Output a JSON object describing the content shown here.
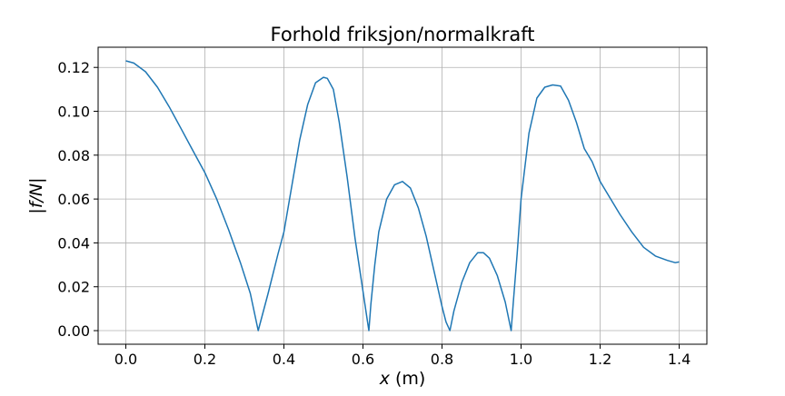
{
  "chart_data": {
    "type": "line",
    "title": "Forhold friksjon/normalkraft",
    "xlabel": {
      "var": "x",
      "unit": " (m)"
    },
    "ylabel": "|f/N|",
    "xlim": [
      -0.07,
      1.47
    ],
    "ylim": [
      -0.0062,
      0.1292
    ],
    "xticks": [
      0.0,
      0.2,
      0.4,
      0.6,
      0.8,
      1.0,
      1.2,
      1.4
    ],
    "xtick_labels": [
      "0.0",
      "0.2",
      "0.4",
      "0.6",
      "0.8",
      "1.0",
      "1.2",
      "1.4"
    ],
    "yticks": [
      0.0,
      0.02,
      0.04,
      0.06,
      0.08,
      0.1,
      0.12
    ],
    "ytick_labels": [
      "0.00",
      "0.02",
      "0.04",
      "0.06",
      "0.08",
      "0.10",
      "0.12"
    ],
    "grid": true,
    "series": [
      {
        "color": "#1f77b4",
        "x": [
          0.0,
          0.02,
          0.05,
          0.08,
          0.11,
          0.14,
          0.17,
          0.2,
          0.23,
          0.26,
          0.29,
          0.315,
          0.335,
          0.36,
          0.385,
          0.4,
          0.42,
          0.44,
          0.46,
          0.48,
          0.5,
          0.51,
          0.525,
          0.54,
          0.56,
          0.58,
          0.6,
          0.61,
          0.615,
          0.62,
          0.63,
          0.64,
          0.66,
          0.68,
          0.7,
          0.72,
          0.74,
          0.76,
          0.78,
          0.8,
          0.81,
          0.82,
          0.83,
          0.85,
          0.87,
          0.89,
          0.905,
          0.92,
          0.94,
          0.96,
          0.975,
          0.98,
          0.99,
          1.0,
          1.02,
          1.04,
          1.06,
          1.08,
          1.1,
          1.12,
          1.14,
          1.16,
          1.18,
          1.2,
          1.22,
          1.25,
          1.28,
          1.31,
          1.34,
          1.37,
          1.39,
          1.4
        ],
        "y": [
          0.123,
          0.122,
          0.118,
          0.111,
          0.102,
          0.092,
          0.082,
          0.072,
          0.06,
          0.046,
          0.031,
          0.017,
          0.0,
          0.017,
          0.035,
          0.045,
          0.066,
          0.087,
          0.103,
          0.113,
          0.1155,
          0.115,
          0.11,
          0.095,
          0.07,
          0.042,
          0.018,
          0.006,
          0.0,
          0.012,
          0.03,
          0.045,
          0.06,
          0.0665,
          0.068,
          0.065,
          0.056,
          0.043,
          0.027,
          0.011,
          0.004,
          0.0,
          0.009,
          0.022,
          0.031,
          0.0355,
          0.0355,
          0.033,
          0.025,
          0.013,
          0.0,
          0.012,
          0.035,
          0.06,
          0.09,
          0.106,
          0.111,
          0.112,
          0.1115,
          0.105,
          0.095,
          0.083,
          0.077,
          0.068,
          0.062,
          0.053,
          0.045,
          0.038,
          0.034,
          0.032,
          0.031,
          0.0313
        ]
      }
    ]
  }
}
